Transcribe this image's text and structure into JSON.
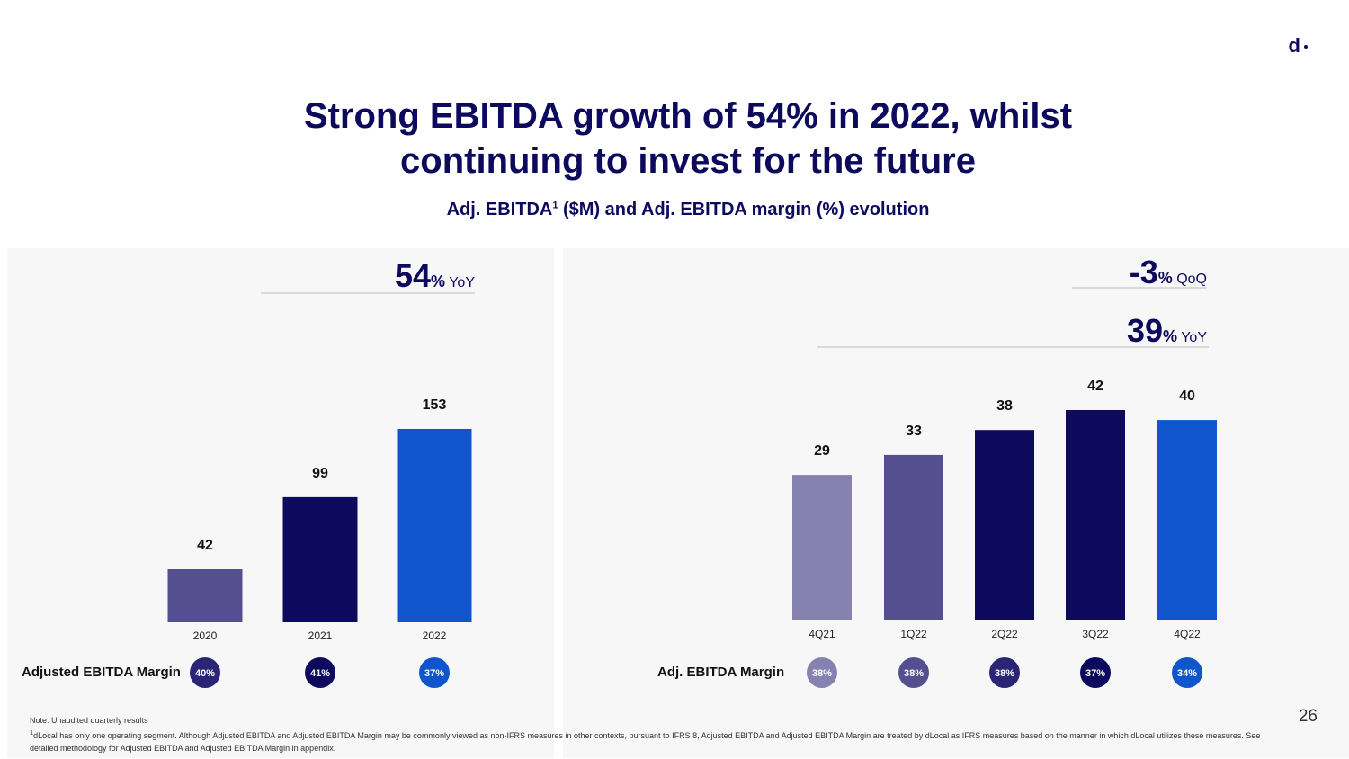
{
  "page": {
    "title_line1": "Strong EBITDA growth of 54% in 2022, whilst",
    "title_line2": "continuing to invest for the future",
    "subtitle_pre": "Adj. EBITDA",
    "subtitle_sup": "1",
    "subtitle_post": " ($M) and Adj. EBITDA margin (%) evolution",
    "logo": "d",
    "page_number": "26",
    "note": "Note: Unaudited quarterly results",
    "footnote_sup": "1",
    "footnote": "dLocal has only one operating segment. Although Adjusted EBITDA and Adjusted EBITDA Margin may be commonly viewed as non-IFRS measures in other contexts, pursuant to IFRS 8, Adjusted EBITDA and Adjusted EBITDA Margin are treated by dLocal as IFRS measures based on the manner in which dLocal utilizes these measures. See detailed methodology for Adjusted EBITDA and Adjusted EBITDA Margin in appendix."
  },
  "annual": {
    "growth_value": "54",
    "growth_pct": "%",
    "growth_label": " YoY",
    "margin_label": "Adjusted EBITDA Margin"
  },
  "quarterly": {
    "qoq_value": "-3",
    "qoq_pct": "%",
    "qoq_label": " QoQ",
    "yoy_value": "39",
    "yoy_pct": "%",
    "yoy_label": " YoY",
    "margin_label": "Adj. EBITDA Margin"
  },
  "chart_data": [
    {
      "type": "bar",
      "categories": [
        "2020",
        "2021",
        "2022"
      ],
      "values": [
        42,
        99,
        153
      ],
      "margins": [
        "40%",
        "41%",
        "37%"
      ],
      "colors": [
        "#554f8f",
        "#0d0a5e",
        "#1155cc"
      ],
      "margin_colors": [
        "#2a2575",
        "#0d0a5e",
        "#1155cc"
      ],
      "ylim": [
        0,
        153
      ]
    },
    {
      "type": "bar",
      "categories": [
        "4Q21",
        "1Q22",
        "2Q22",
        "3Q22",
        "4Q22"
      ],
      "values": [
        29,
        33,
        38,
        42,
        40
      ],
      "margins": [
        "38%",
        "38%",
        "38%",
        "37%",
        "34%"
      ],
      "colors": [
        "#8682b0",
        "#554f8f",
        "#0d0a5e",
        "#0d0a5e",
        "#1155cc"
      ],
      "margin_colors": [
        "#8682b0",
        "#554f8f",
        "#2a2575",
        "#0d0a5e",
        "#1155cc"
      ],
      "ylim": [
        0,
        42
      ]
    }
  ]
}
